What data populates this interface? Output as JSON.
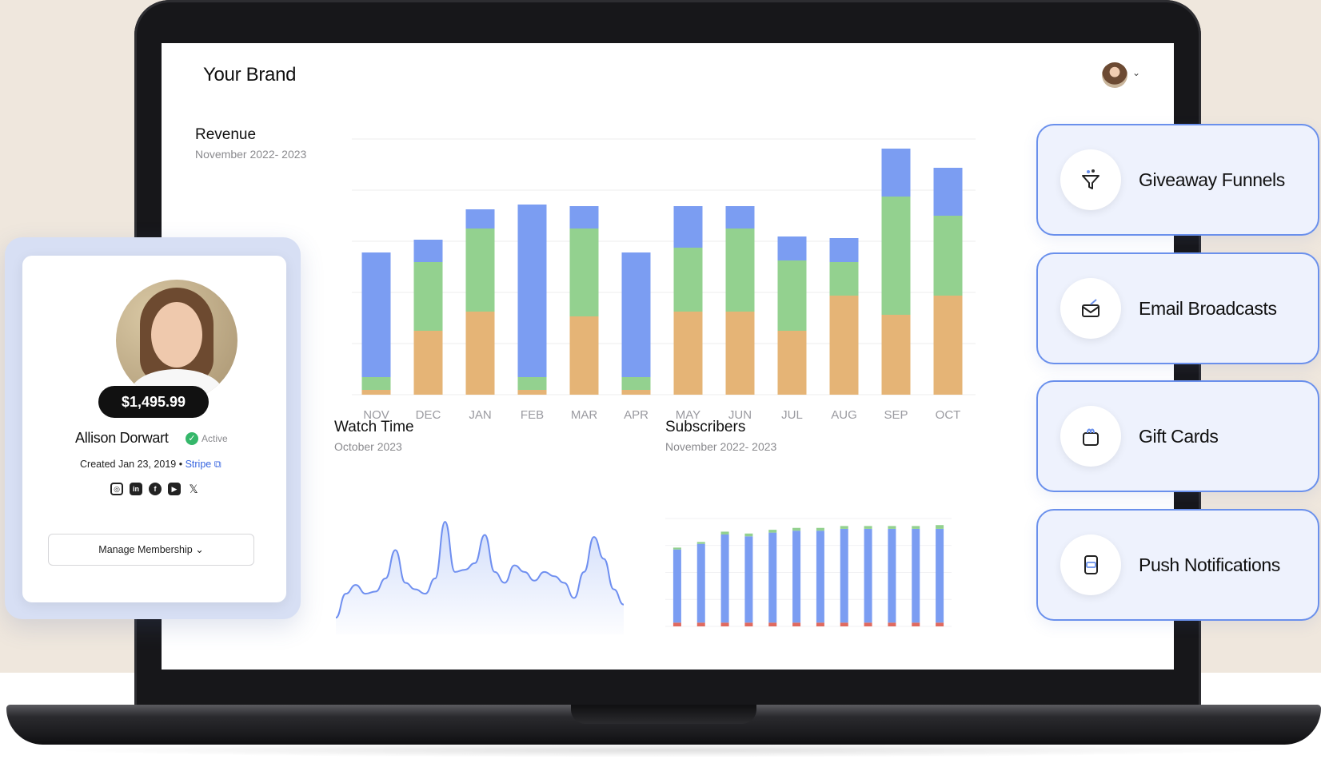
{
  "header": {
    "brand": "Your Brand"
  },
  "revenue": {
    "title": "Revenue",
    "subtitle": "November 2022- 2023"
  },
  "watch_time": {
    "title": "Watch Time",
    "subtitle": "October 2023"
  },
  "subscribers": {
    "title": "Subscribers",
    "subtitle": "November 2022- 2023"
  },
  "profile": {
    "balance": "$1,495.99",
    "name": "Allison Dorwart",
    "status": "Active",
    "created": "Created Jan 23, 2019 •",
    "stripe_link": "Stripe",
    "socials": [
      "instagram-icon",
      "linkedin-icon",
      "facebook-icon",
      "youtube-icon",
      "x-icon"
    ],
    "manage_button": "Manage Membership"
  },
  "features": [
    {
      "label": "Giveaway Funnels",
      "icon": "funnel-icon"
    },
    {
      "label": "Email Broadcasts",
      "icon": "email-broadcast-icon"
    },
    {
      "label": "Gift Cards",
      "icon": "gift-card-icon"
    },
    {
      "label": "Push Notifications",
      "icon": "push-notification-icon"
    }
  ],
  "colors": {
    "blue": "#7b9df2",
    "green": "#93d18f",
    "orange": "#e5b476",
    "red": "#e06a5f",
    "accent_border": "#6a90ec"
  },
  "chart_data": [
    {
      "type": "bar",
      "stacked": true,
      "categories": [
        "NOV",
        "DEC",
        "JAN",
        "FEB",
        "MAR",
        "APR",
        "MAY",
        "JUN",
        "JUL",
        "AUG",
        "SEP",
        "OCT"
      ],
      "series": [
        {
          "values": [
            3,
            40,
            52,
            3,
            49,
            3,
            52,
            52,
            40,
            62,
            50,
            62
          ]
        },
        {
          "values": [
            8,
            43,
            52,
            8,
            55,
            8,
            40,
            52,
            44,
            21,
            74,
            50
          ]
        },
        {
          "values": [
            78,
            14,
            12,
            108,
            14,
            78,
            26,
            14,
            15,
            15,
            30,
            30
          ]
        }
      ],
      "ylim": [
        0,
        160
      ],
      "grid": true
    },
    {
      "type": "area",
      "values": [
        8,
        30,
        38,
        30,
        32,
        44,
        70,
        40,
        34,
        30,
        44,
        96,
        50,
        52,
        58,
        84,
        50,
        40,
        56,
        50,
        42,
        50,
        46,
        40,
        26,
        50,
        82,
        62,
        34,
        20
      ],
      "ylim": [
        0,
        110
      ],
      "grid": false
    },
    {
      "type": "bar",
      "stacked": true,
      "categories": [
        "1",
        "2",
        "3",
        "4",
        "5",
        "6",
        "7",
        "8",
        "9",
        "10",
        "11",
        "12"
      ],
      "series": [
        {
          "values": [
            4,
            4,
            4,
            4,
            4,
            4,
            4,
            4,
            4,
            4,
            4,
            4
          ]
        },
        {
          "values": [
            78,
            84,
            94,
            92,
            96,
            98,
            98,
            100,
            100,
            100,
            100,
            100
          ]
        },
        {
          "values": [
            2,
            2,
            3,
            3,
            3,
            3,
            3,
            3,
            3,
            3,
            3,
            4
          ]
        }
      ],
      "ylim": [
        0,
        115
      ],
      "grid": false
    }
  ]
}
